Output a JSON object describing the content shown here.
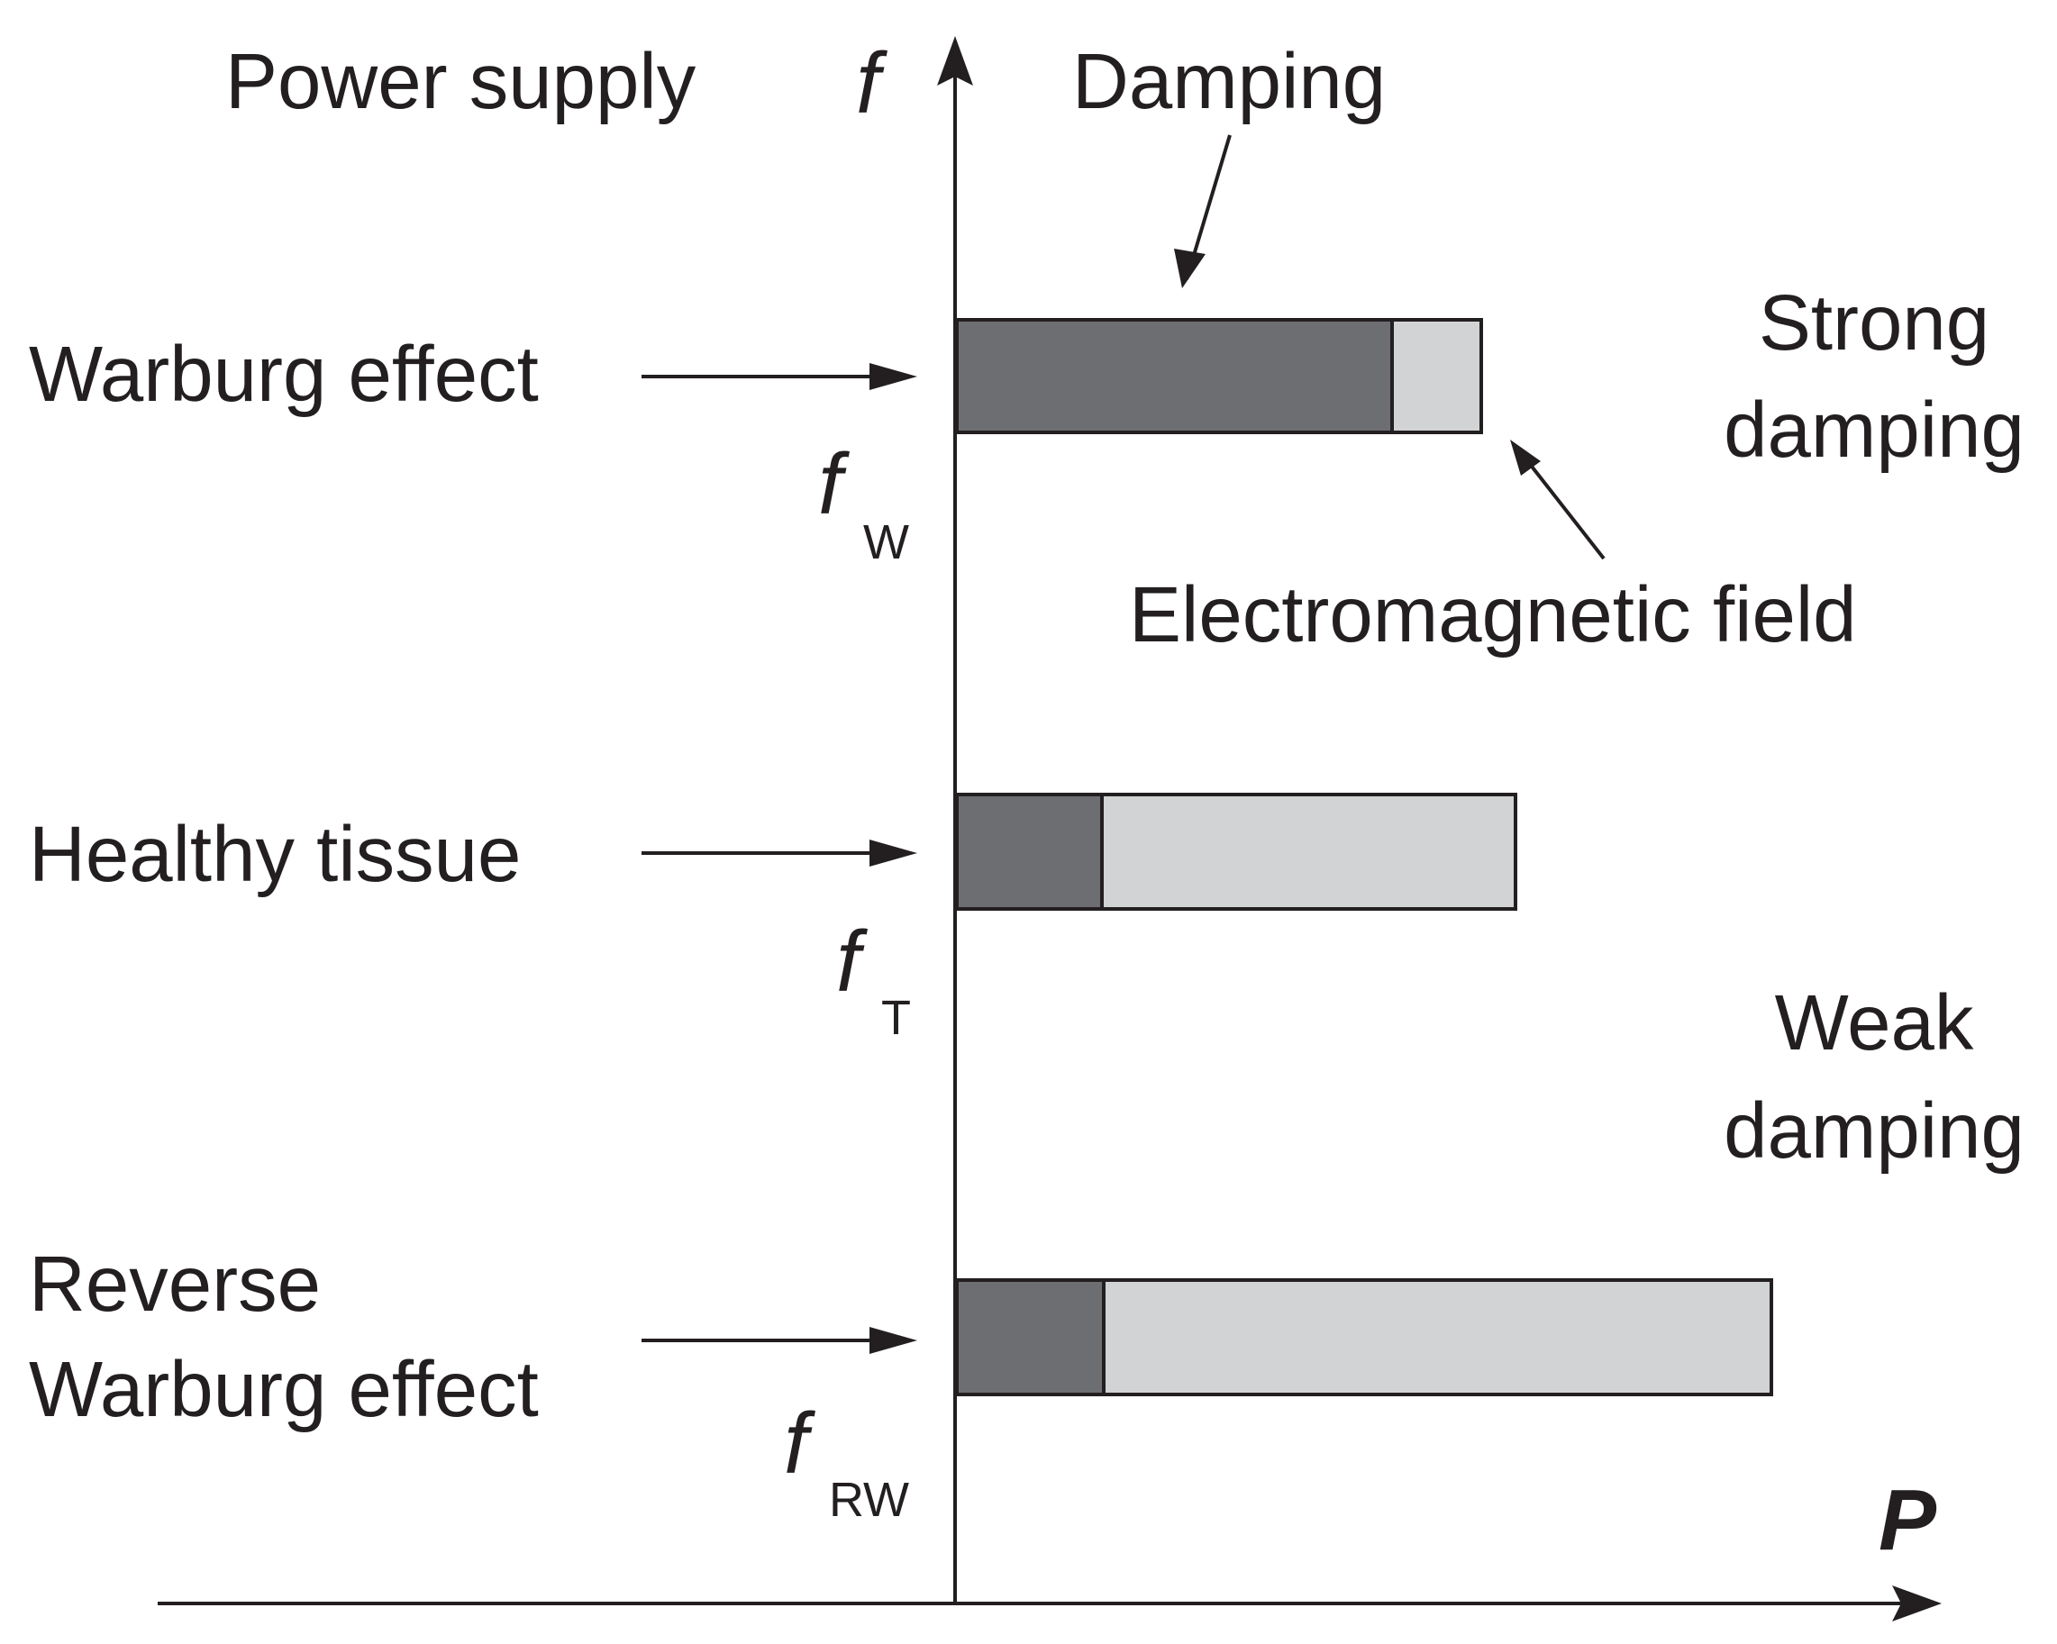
{
  "header": {
    "power_supply": "Power supply",
    "y_axis_symbol": "f",
    "x_axis_symbol": "P",
    "damping": "Damping"
  },
  "rows": [
    {
      "label_lines": [
        "Warburg effect"
      ],
      "freq_symbol": "f",
      "freq_sub": "W",
      "damping_fraction": 0.83
    },
    {
      "label_lines": [
        "Healthy tissue"
      ],
      "freq_symbol": "f",
      "freq_sub": "T",
      "damping_fraction": 0.26
    },
    {
      "label_lines": [
        "Reverse",
        "Warburg effect"
      ],
      "freq_symbol": "f",
      "freq_sub": "RW",
      "damping_fraction": 0.18
    }
  ],
  "annotations": {
    "em_field": "Electromagnetic field",
    "strong_damping": [
      "Strong",
      "damping"
    ],
    "weak_damping": [
      "Weak",
      "damping"
    ]
  },
  "colors": {
    "damping_fill": "#6d6e71",
    "field_fill": "#d1d3d4",
    "line": "#231f20"
  }
}
